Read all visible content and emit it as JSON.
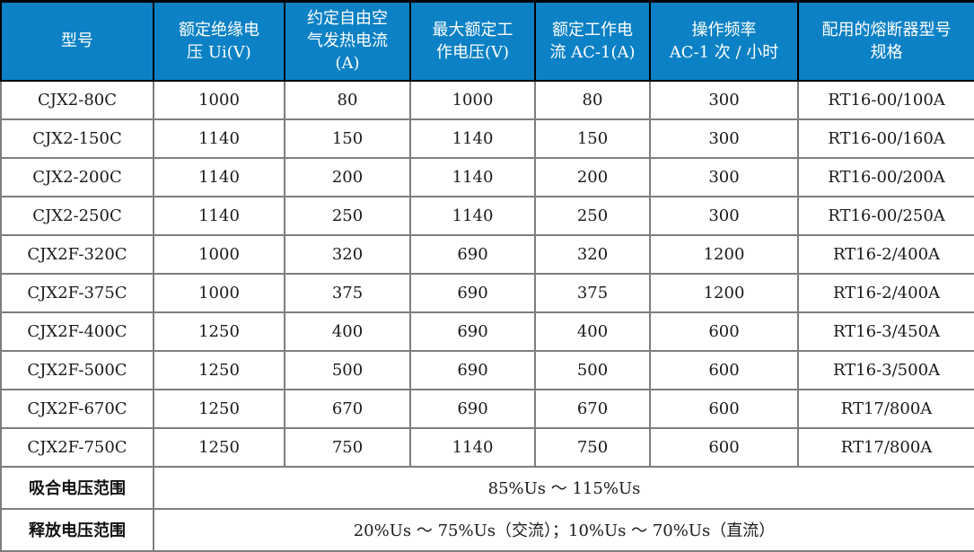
{
  "accent_color": "#0c81c5",
  "grid_color": "#7e7e7e",
  "table": {
    "columns": [
      "型号",
      "额定绝缘电\n压 Ui(V)",
      "约定自由空\n气发热电流\n(A)",
      "最大额定工\n作电压(V)",
      "额定工作电\n流 AC-1(A)",
      "操作频率\nAC-1 次 / 小时",
      "配用的熔断器型号\n规格"
    ],
    "rows": [
      [
        "CJX2-80C",
        "1000",
        "80",
        "1000",
        "80",
        "300",
        "RT16-00/100A"
      ],
      [
        "CJX2-150C",
        "1140",
        "150",
        "1140",
        "150",
        "300",
        "RT16-00/160A"
      ],
      [
        "CJX2-200C",
        "1140",
        "200",
        "1140",
        "200",
        "300",
        "RT16-00/200A"
      ],
      [
        "CJX2-250C",
        "1140",
        "250",
        "1140",
        "250",
        "300",
        "RT16-00/250A"
      ],
      [
        "CJX2F-320C",
        "1000",
        "320",
        "690",
        "320",
        "1200",
        "RT16-2/400A"
      ],
      [
        "CJX2F-375C",
        "1000",
        "375",
        "690",
        "375",
        "1200",
        "RT16-2/400A"
      ],
      [
        "CJX2F-400C",
        "1250",
        "400",
        "690",
        "400",
        "600",
        "RT16-3/450A"
      ],
      [
        "CJX2F-500C",
        "1250",
        "500",
        "690",
        "500",
        "600",
        "RT16-3/500A"
      ],
      [
        "CJX2F-670C",
        "1250",
        "670",
        "690",
        "670",
        "600",
        "RT17/800A"
      ],
      [
        "CJX2F-750C",
        "1250",
        "750",
        "1140",
        "750",
        "600",
        "RT17/800A"
      ]
    ],
    "footer_rows": [
      {
        "label": "吸合电压范围",
        "value": "85%Us ～ 115%Us"
      },
      {
        "label": "释放电压范围",
        "value": "20%Us ～ 75%Us（交流）；10%Us ～ 70%Us（直流）"
      }
    ]
  }
}
